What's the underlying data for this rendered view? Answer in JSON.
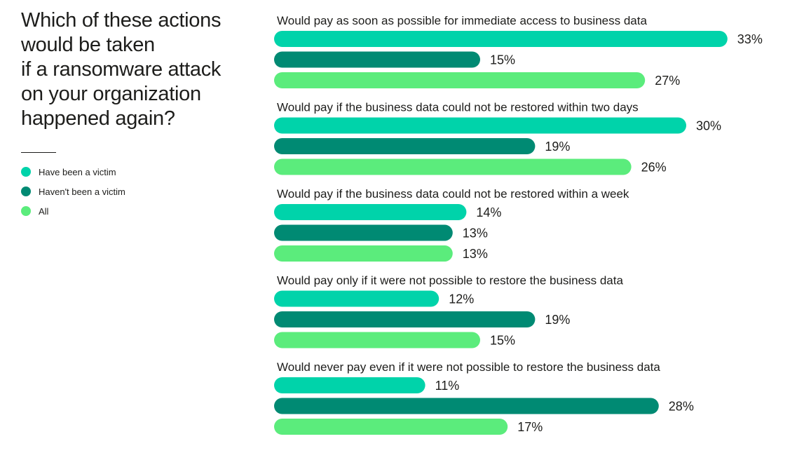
{
  "chart_data": {
    "type": "bar",
    "orientation": "horizontal",
    "title": "Which of these actions would be taken if a ransomware attack on your organization happened again?",
    "title_lines": [
      "Which of these actions",
      "would be taken",
      "if a ransomware attack",
      "on your organization",
      "happened again?"
    ],
    "categories": [
      "Would pay as soon as possible for immediate access to business data",
      "Would pay if the business data could not be restored within two days",
      "Would pay if the business data could not be restored within a week",
      "Would pay only if it were not possible to restore the business data",
      "Would never pay even if it were not possible to restore the business data"
    ],
    "series": [
      {
        "name": "Have been a victim",
        "color": "#00d3aa",
        "values": [
          33,
          30,
          14,
          12,
          11
        ]
      },
      {
        "name": "Haven't been a victim",
        "color": "#008a73",
        "values": [
          15,
          19,
          13,
          19,
          28
        ]
      },
      {
        "name": "All",
        "color": "#5bec7c",
        "values": [
          27,
          26,
          13,
          15,
          17
        ]
      }
    ],
    "value_suffix": "%",
    "xlim": [
      0,
      34
    ],
    "legend_position": "left",
    "grid": false
  }
}
